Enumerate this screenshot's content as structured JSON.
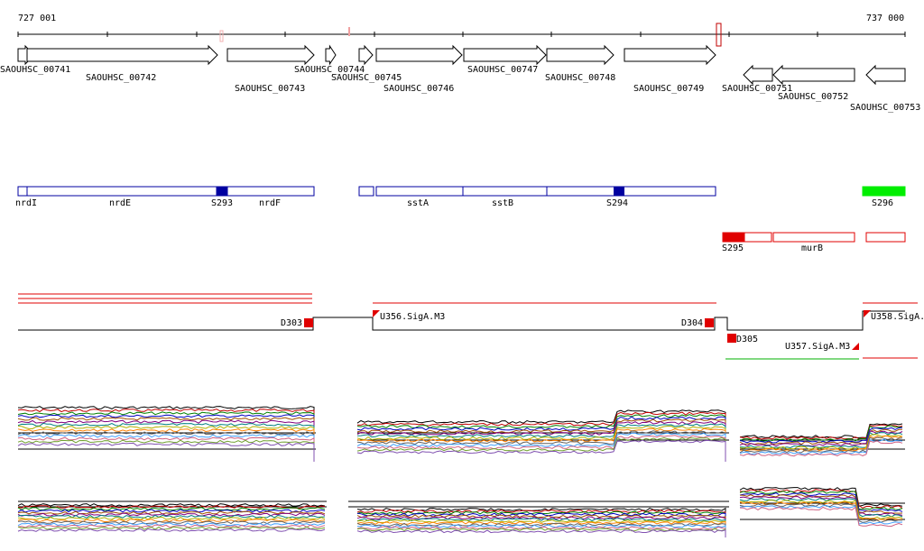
{
  "coords": {
    "start": "727 001",
    "end": "737 000"
  },
  "colors": {
    "gene": "#000000",
    "feature_blue": "#0000a0",
    "feature_red": "#e00000",
    "feature_green": "#00ee00",
    "segment": "#e00000",
    "baseline": "#000000",
    "green_line": "#00b000"
  },
  "genes": [
    {
      "label": "SAOUHSC_00741",
      "strand": "+"
    },
    {
      "label": "SAOUHSC_00742",
      "strand": "+"
    },
    {
      "label": "SAOUHSC_00743",
      "strand": "+"
    },
    {
      "label": "SAOUHSC_00744",
      "strand": "+"
    },
    {
      "label": "SAOUHSC_00745",
      "strand": "+"
    },
    {
      "label": "SAOUHSC_00746",
      "strand": "+"
    },
    {
      "label": "SAOUHSC_00747",
      "strand": "+"
    },
    {
      "label": "SAOUHSC_00748",
      "strand": "+"
    },
    {
      "label": "SAOUHSC_00749",
      "strand": "+"
    },
    {
      "label": "SAOUHSC_00751",
      "strand": "-"
    },
    {
      "label": "SAOUHSC_00752",
      "strand": "-"
    },
    {
      "label": "SAOUHSC_00753",
      "strand": "-"
    }
  ],
  "features_forward": [
    {
      "label": "nrdI"
    },
    {
      "label": "nrdE"
    },
    {
      "label": "S293"
    },
    {
      "label": "nrdF"
    },
    {
      "label": ""
    },
    {
      "label": "sstA"
    },
    {
      "label": "sstB"
    },
    {
      "label": "S294"
    },
    {
      "label": "S296"
    }
  ],
  "features_reverse": [
    {
      "label": "S295"
    },
    {
      "label": ""
    },
    {
      "label": "murB"
    },
    {
      "label": ""
    }
  ],
  "segments": [
    {
      "label": "D303"
    },
    {
      "label": "U356.SigA.M3"
    },
    {
      "label": "D304"
    },
    {
      "label": "D305"
    },
    {
      "label": "U357.SigA.M3"
    },
    {
      "label": "U358.SigA."
    }
  ],
  "expression_tracks": [
    {
      "name": "upper-expression-panel"
    },
    {
      "name": "lower-expression-panel"
    }
  ]
}
